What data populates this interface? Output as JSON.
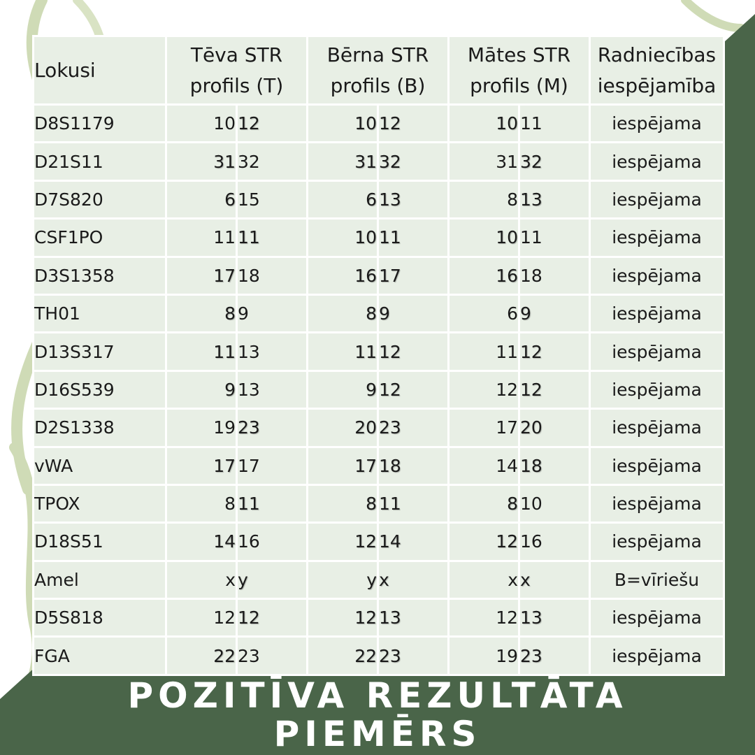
{
  "colors": {
    "paternal_match": "#5b8a3c",
    "maternal_match": "#d9762a",
    "other": "#1a1a1a",
    "background_green": "#4a6549",
    "table_background": "#e8efe5"
  },
  "table": {
    "headers": {
      "loci": "Lokusi",
      "father": [
        "Tēva STR",
        "profils (T)"
      ],
      "child": [
        "Bērna STR",
        "profils (B)"
      ],
      "mother": [
        "Mātes STR",
        "profils (M)"
      ],
      "relationship": [
        "Radniecības",
        "iespējamība"
      ]
    },
    "rows": [
      {
        "locus": "D8S1179",
        "father": [
          {
            "v": "10",
            "c": "k"
          },
          {
            "v": "12",
            "c": "g"
          }
        ],
        "child": [
          {
            "v": "10",
            "c": "o"
          },
          {
            "v": "12",
            "c": "g"
          }
        ],
        "mother": [
          {
            "v": "10",
            "c": "o"
          },
          {
            "v": "11",
            "c": "k"
          }
        ],
        "result": "iespējama"
      },
      {
        "locus": "D21S11",
        "father": [
          {
            "v": "31",
            "c": "g"
          },
          {
            "v": "32",
            "c": "k"
          }
        ],
        "child": [
          {
            "v": "31",
            "c": "g"
          },
          {
            "v": "32",
            "c": "o"
          }
        ],
        "mother": [
          {
            "v": "31",
            "c": "k"
          },
          {
            "v": "32",
            "c": "o"
          }
        ],
        "result": "iespējama"
      },
      {
        "locus": "D7S820",
        "father": [
          {
            "v": "6",
            "c": "g"
          },
          {
            "v": "15",
            "c": "k"
          }
        ],
        "child": [
          {
            "v": "6",
            "c": "g"
          },
          {
            "v": "13",
            "c": "o"
          }
        ],
        "mother": [
          {
            "v": "8",
            "c": "k"
          },
          {
            "v": "13",
            "c": "o"
          }
        ],
        "result": "iespējama"
      },
      {
        "locus": "CSF1PO",
        "father": [
          {
            "v": "11",
            "c": "k"
          },
          {
            "v": "11",
            "c": "g"
          }
        ],
        "child": [
          {
            "v": "10",
            "c": "o"
          },
          {
            "v": "11",
            "c": "g"
          }
        ],
        "mother": [
          {
            "v": "10",
            "c": "o"
          },
          {
            "v": "11",
            "c": "k"
          }
        ],
        "result": "iespējama"
      },
      {
        "locus": "D3S1358",
        "father": [
          {
            "v": "17",
            "c": "g"
          },
          {
            "v": "18",
            "c": "k"
          }
        ],
        "child": [
          {
            "v": "16",
            "c": "o"
          },
          {
            "v": "17",
            "c": "g"
          }
        ],
        "mother": [
          {
            "v": "16",
            "c": "o"
          },
          {
            "v": "18",
            "c": "k"
          }
        ],
        "result": "iespējama"
      },
      {
        "locus": "TH01",
        "father": [
          {
            "v": "8",
            "c": "g"
          },
          {
            "v": "9",
            "c": "k"
          }
        ],
        "child": [
          {
            "v": "8",
            "c": "g"
          },
          {
            "v": "9",
            "c": "o"
          }
        ],
        "mother": [
          {
            "v": "6",
            "c": "k"
          },
          {
            "v": "9",
            "c": "o"
          }
        ],
        "result": "iespējama"
      },
      {
        "locus": "D13S317",
        "father": [
          {
            "v": "11",
            "c": "g"
          },
          {
            "v": "13",
            "c": "k"
          }
        ],
        "child": [
          {
            "v": "11",
            "c": "g"
          },
          {
            "v": "12",
            "c": "o"
          }
        ],
        "mother": [
          {
            "v": "11",
            "c": "k"
          },
          {
            "v": "12",
            "c": "o"
          }
        ],
        "result": "iespējama"
      },
      {
        "locus": "D16S539",
        "father": [
          {
            "v": "9",
            "c": "g"
          },
          {
            "v": "13",
            "c": "k"
          }
        ],
        "child": [
          {
            "v": "9",
            "c": "g"
          },
          {
            "v": "12",
            "c": "o"
          }
        ],
        "mother": [
          {
            "v": "12",
            "c": "k"
          },
          {
            "v": "12",
            "c": "o"
          }
        ],
        "result": "iespējama"
      },
      {
        "locus": "D2S1338",
        "father": [
          {
            "v": "19",
            "c": "k"
          },
          {
            "v": "23",
            "c": "g"
          }
        ],
        "child": [
          {
            "v": "20",
            "c": "o"
          },
          {
            "v": "23",
            "c": "g"
          }
        ],
        "mother": [
          {
            "v": "17",
            "c": "k"
          },
          {
            "v": "20",
            "c": "o"
          }
        ],
        "result": "iespējama"
      },
      {
        "locus": "vWA",
        "father": [
          {
            "v": "17",
            "c": "g"
          },
          {
            "v": "17",
            "c": "k"
          }
        ],
        "child": [
          {
            "v": "17",
            "c": "g"
          },
          {
            "v": "18",
            "c": "o"
          }
        ],
        "mother": [
          {
            "v": "14",
            "c": "k"
          },
          {
            "v": "18",
            "c": "o"
          }
        ],
        "result": "iespējama"
      },
      {
        "locus": "TPOX",
        "father": [
          {
            "v": "8",
            "c": "k"
          },
          {
            "v": "11",
            "c": "g"
          }
        ],
        "child": [
          {
            "v": "8",
            "c": "o"
          },
          {
            "v": "11",
            "c": "g"
          }
        ],
        "mother": [
          {
            "v": "8",
            "c": "o"
          },
          {
            "v": "10",
            "c": "k"
          }
        ],
        "result": "iespējama"
      },
      {
        "locus": "D18S51",
        "father": [
          {
            "v": "14",
            "c": "g"
          },
          {
            "v": "16",
            "c": "k"
          }
        ],
        "child": [
          {
            "v": "12",
            "c": "o"
          },
          {
            "v": "14",
            "c": "g"
          }
        ],
        "mother": [
          {
            "v": "12",
            "c": "o"
          },
          {
            "v": "16",
            "c": "k"
          }
        ],
        "result": "iespējama"
      },
      {
        "locus": "Amel",
        "father": [
          {
            "v": "x",
            "c": "k"
          },
          {
            "v": "y",
            "c": "g"
          }
        ],
        "child": [
          {
            "v": "y",
            "c": "g"
          },
          {
            "v": "x",
            "c": "o"
          }
        ],
        "mother": [
          {
            "v": "x",
            "c": "k"
          },
          {
            "v": "x",
            "c": "o"
          }
        ],
        "result": "B=vīriešu"
      },
      {
        "locus": "D5S818",
        "father": [
          {
            "v": "12",
            "c": "k"
          },
          {
            "v": "12",
            "c": "g"
          }
        ],
        "child": [
          {
            "v": "12",
            "c": "g"
          },
          {
            "v": "13",
            "c": "o"
          }
        ],
        "mother": [
          {
            "v": "12",
            "c": "k"
          },
          {
            "v": "13",
            "c": "o"
          }
        ],
        "result": "iespējama"
      },
      {
        "locus": "FGA",
        "father": [
          {
            "v": "22",
            "c": "g"
          },
          {
            "v": "23",
            "c": "k"
          }
        ],
        "child": [
          {
            "v": "22",
            "c": "g"
          },
          {
            "v": "23",
            "c": "o"
          }
        ],
        "mother": [
          {
            "v": "19",
            "c": "k"
          },
          {
            "v": "23",
            "c": "o"
          }
        ],
        "result": "iespējama"
      }
    ]
  },
  "footer": {
    "line1": "POZITĪVA REZULTĀTA",
    "line2": "PIEMĒRS"
  }
}
